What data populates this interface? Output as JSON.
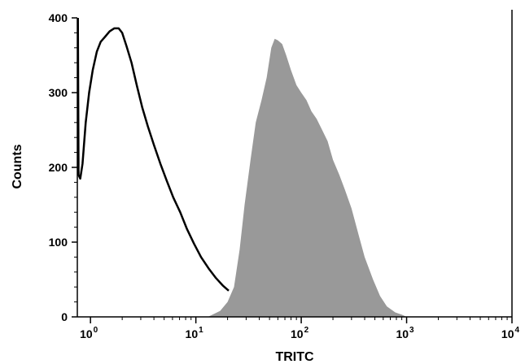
{
  "chart_data": {
    "type": "area",
    "title": "",
    "xlabel": "TRITC",
    "ylabel": "Counts",
    "x_scale": "log",
    "xlim": [
      0.75,
      10000
    ],
    "ylim": [
      0,
      415
    ],
    "x_ticks": [
      {
        "value": 1,
        "base": "10",
        "exp": "0"
      },
      {
        "value": 10,
        "base": "10",
        "exp": "1"
      },
      {
        "value": 100,
        "base": "10",
        "exp": "2"
      },
      {
        "value": 1000,
        "base": "10",
        "exp": "3"
      },
      {
        "value": 10000,
        "base": "10",
        "exp": "4"
      }
    ],
    "y_ticks": [
      0,
      100,
      200,
      300,
      400
    ],
    "grid": false,
    "legend": "none",
    "series": [
      {
        "style": "outline",
        "color": "#000000",
        "points": [
          [
            0.76,
            400
          ],
          [
            0.77,
            190
          ],
          [
            0.8,
            185
          ],
          [
            0.84,
            205
          ],
          [
            0.9,
            260
          ],
          [
            0.97,
            300
          ],
          [
            1.05,
            330
          ],
          [
            1.15,
            355
          ],
          [
            1.25,
            368
          ],
          [
            1.38,
            375
          ],
          [
            1.52,
            382
          ],
          [
            1.68,
            386
          ],
          [
            1.85,
            386
          ],
          [
            2.0,
            380
          ],
          [
            2.2,
            362
          ],
          [
            2.45,
            340
          ],
          [
            2.75,
            310
          ],
          [
            3.1,
            280
          ],
          [
            3.5,
            255
          ],
          [
            4.0,
            230
          ],
          [
            4.6,
            205
          ],
          [
            5.3,
            182
          ],
          [
            6.1,
            160
          ],
          [
            7.1,
            140
          ],
          [
            8.2,
            118
          ],
          [
            9.6,
            98
          ],
          [
            11.2,
            80
          ],
          [
            13.2,
            65
          ],
          [
            15.5,
            52
          ],
          [
            18.0,
            42
          ],
          [
            20.5,
            35
          ]
        ]
      },
      {
        "style": "filled",
        "color": "#999999",
        "points": [
          [
            13,
            0
          ],
          [
            17,
            8
          ],
          [
            20,
            20
          ],
          [
            23,
            40
          ],
          [
            26,
            90
          ],
          [
            29,
            150
          ],
          [
            33,
            210
          ],
          [
            37,
            260
          ],
          [
            42,
            290
          ],
          [
            47,
            320
          ],
          [
            52,
            360
          ],
          [
            56,
            372
          ],
          [
            60,
            370
          ],
          [
            66,
            365
          ],
          [
            72,
            350
          ],
          [
            80,
            330
          ],
          [
            90,
            310
          ],
          [
            100,
            300
          ],
          [
            112,
            290
          ],
          [
            125,
            275
          ],
          [
            140,
            265
          ],
          [
            158,
            250
          ],
          [
            178,
            235
          ],
          [
            200,
            210
          ],
          [
            230,
            190
          ],
          [
            260,
            170
          ],
          [
            300,
            145
          ],
          [
            350,
            110
          ],
          [
            400,
            80
          ],
          [
            480,
            50
          ],
          [
            560,
            28
          ],
          [
            650,
            14
          ],
          [
            780,
            6
          ],
          [
            900,
            3
          ],
          [
            1000,
            0
          ]
        ]
      }
    ]
  },
  "colors": {
    "axis": "#000000",
    "fill": "#999999",
    "outline": "#000000"
  }
}
